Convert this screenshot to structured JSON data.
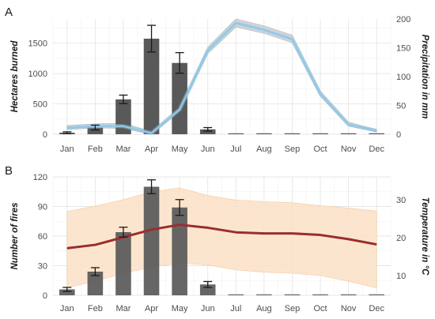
{
  "chart_data": [
    {
      "panel": "A",
      "type": "bar+line",
      "categories": [
        "Jan",
        "Feb",
        "Mar",
        "Apr",
        "May",
        "Jun",
        "Jul",
        "Aug",
        "Sep",
        "Oct",
        "Nov",
        "Dec"
      ],
      "ylabel": "Hectares burned",
      "ylabel_right": "Precipitation in mm",
      "ylim": [
        0,
        1900
      ],
      "ylim_right": [
        0,
        200
      ],
      "yticks": [
        0,
        500,
        1000,
        1500
      ],
      "yticks_right": [
        0,
        50,
        100,
        150,
        200
      ],
      "bars": {
        "values": [
          25,
          110,
          575,
          1575,
          1175,
          80,
          4,
          4,
          4,
          4,
          4,
          4
        ],
        "error": [
          15,
          40,
          70,
          220,
          170,
          30,
          0,
          0,
          0,
          0,
          0,
          0
        ],
        "color": "#595959"
      },
      "line": {
        "values": [
          11,
          14,
          14,
          2,
          43,
          145,
          193,
          181,
          165,
          70,
          17,
          6
        ],
        "band_low": [
          8,
          11,
          10,
          0,
          39,
          140,
          186,
          175,
          159,
          66,
          14,
          4
        ],
        "band_high": [
          15,
          18,
          19,
          5,
          47,
          151,
          200,
          188,
          172,
          75,
          21,
          8
        ],
        "color": "#8ec9ea",
        "band_color": "#c8c8c8"
      }
    },
    {
      "panel": "B",
      "type": "bar+line",
      "categories": [
        "Jan",
        "Feb",
        "Mar",
        "Apr",
        "May",
        "Jun",
        "Jul",
        "Aug",
        "Sep",
        "Oct",
        "Nov",
        "Dec"
      ],
      "ylabel": "Number of fires",
      "ylabel_right": "Temperature in °C",
      "ylim": [
        0,
        120
      ],
      "ylim_right": [
        4.8,
        36
      ],
      "yticks": [
        0,
        30,
        60,
        90,
        120
      ],
      "yticks_right": [
        10,
        20,
        30
      ],
      "bars": {
        "values": [
          6,
          24,
          64,
          110,
          89,
          11,
          0.5,
          0.5,
          0.5,
          0.5,
          0.5,
          1
        ],
        "error": [
          2,
          4,
          5,
          7,
          8,
          3,
          0,
          0,
          0,
          0,
          0,
          0
        ],
        "color": "#595959"
      },
      "line": {
        "values": [
          17.2,
          18.1,
          20.1,
          22.1,
          23.4,
          22.6,
          21.4,
          21.1,
          21.1,
          20.7,
          19.6,
          18.2
        ],
        "band_low": [
          6.8,
          8.5,
          10.6,
          12.2,
          13.3,
          12.8,
          11.5,
          10.9,
          10.6,
          10.0,
          8.5,
          6.7
        ],
        "band_high": [
          26.9,
          28.3,
          30.0,
          32.0,
          33.1,
          31.1,
          29.9,
          29.5,
          29.2,
          28.4,
          27.8,
          27.0
        ],
        "color": "#9b2d2d",
        "band_color": "#fbe1c6"
      }
    }
  ]
}
